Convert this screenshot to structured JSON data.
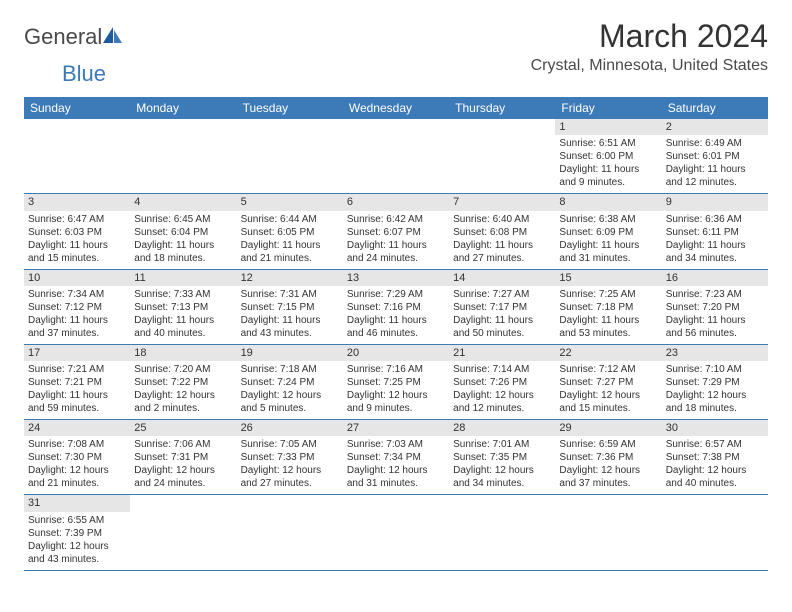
{
  "logo": {
    "text1": "General",
    "text2": "Blue"
  },
  "title": "March 2024",
  "location": "Crystal, Minnesota, United States",
  "colors": {
    "header_bg": "#3d7ab8",
    "daynum_bg": "#e6e6e6",
    "border": "#3d7ab8",
    "text": "#333333"
  },
  "day_names": [
    "Sunday",
    "Monday",
    "Tuesday",
    "Wednesday",
    "Thursday",
    "Friday",
    "Saturday"
  ],
  "weeks": [
    [
      null,
      null,
      null,
      null,
      null,
      {
        "n": "1",
        "sr": "Sunrise: 6:51 AM",
        "ss": "Sunset: 6:00 PM",
        "d1": "Daylight: 11 hours",
        "d2": "and 9 minutes."
      },
      {
        "n": "2",
        "sr": "Sunrise: 6:49 AM",
        "ss": "Sunset: 6:01 PM",
        "d1": "Daylight: 11 hours",
        "d2": "and 12 minutes."
      }
    ],
    [
      {
        "n": "3",
        "sr": "Sunrise: 6:47 AM",
        "ss": "Sunset: 6:03 PM",
        "d1": "Daylight: 11 hours",
        "d2": "and 15 minutes."
      },
      {
        "n": "4",
        "sr": "Sunrise: 6:45 AM",
        "ss": "Sunset: 6:04 PM",
        "d1": "Daylight: 11 hours",
        "d2": "and 18 minutes."
      },
      {
        "n": "5",
        "sr": "Sunrise: 6:44 AM",
        "ss": "Sunset: 6:05 PM",
        "d1": "Daylight: 11 hours",
        "d2": "and 21 minutes."
      },
      {
        "n": "6",
        "sr": "Sunrise: 6:42 AM",
        "ss": "Sunset: 6:07 PM",
        "d1": "Daylight: 11 hours",
        "d2": "and 24 minutes."
      },
      {
        "n": "7",
        "sr": "Sunrise: 6:40 AM",
        "ss": "Sunset: 6:08 PM",
        "d1": "Daylight: 11 hours",
        "d2": "and 27 minutes."
      },
      {
        "n": "8",
        "sr": "Sunrise: 6:38 AM",
        "ss": "Sunset: 6:09 PM",
        "d1": "Daylight: 11 hours",
        "d2": "and 31 minutes."
      },
      {
        "n": "9",
        "sr": "Sunrise: 6:36 AM",
        "ss": "Sunset: 6:11 PM",
        "d1": "Daylight: 11 hours",
        "d2": "and 34 minutes."
      }
    ],
    [
      {
        "n": "10",
        "sr": "Sunrise: 7:34 AM",
        "ss": "Sunset: 7:12 PM",
        "d1": "Daylight: 11 hours",
        "d2": "and 37 minutes."
      },
      {
        "n": "11",
        "sr": "Sunrise: 7:33 AM",
        "ss": "Sunset: 7:13 PM",
        "d1": "Daylight: 11 hours",
        "d2": "and 40 minutes."
      },
      {
        "n": "12",
        "sr": "Sunrise: 7:31 AM",
        "ss": "Sunset: 7:15 PM",
        "d1": "Daylight: 11 hours",
        "d2": "and 43 minutes."
      },
      {
        "n": "13",
        "sr": "Sunrise: 7:29 AM",
        "ss": "Sunset: 7:16 PM",
        "d1": "Daylight: 11 hours",
        "d2": "and 46 minutes."
      },
      {
        "n": "14",
        "sr": "Sunrise: 7:27 AM",
        "ss": "Sunset: 7:17 PM",
        "d1": "Daylight: 11 hours",
        "d2": "and 50 minutes."
      },
      {
        "n": "15",
        "sr": "Sunrise: 7:25 AM",
        "ss": "Sunset: 7:18 PM",
        "d1": "Daylight: 11 hours",
        "d2": "and 53 minutes."
      },
      {
        "n": "16",
        "sr": "Sunrise: 7:23 AM",
        "ss": "Sunset: 7:20 PM",
        "d1": "Daylight: 11 hours",
        "d2": "and 56 minutes."
      }
    ],
    [
      {
        "n": "17",
        "sr": "Sunrise: 7:21 AM",
        "ss": "Sunset: 7:21 PM",
        "d1": "Daylight: 11 hours",
        "d2": "and 59 minutes."
      },
      {
        "n": "18",
        "sr": "Sunrise: 7:20 AM",
        "ss": "Sunset: 7:22 PM",
        "d1": "Daylight: 12 hours",
        "d2": "and 2 minutes."
      },
      {
        "n": "19",
        "sr": "Sunrise: 7:18 AM",
        "ss": "Sunset: 7:24 PM",
        "d1": "Daylight: 12 hours",
        "d2": "and 5 minutes."
      },
      {
        "n": "20",
        "sr": "Sunrise: 7:16 AM",
        "ss": "Sunset: 7:25 PM",
        "d1": "Daylight: 12 hours",
        "d2": "and 9 minutes."
      },
      {
        "n": "21",
        "sr": "Sunrise: 7:14 AM",
        "ss": "Sunset: 7:26 PM",
        "d1": "Daylight: 12 hours",
        "d2": "and 12 minutes."
      },
      {
        "n": "22",
        "sr": "Sunrise: 7:12 AM",
        "ss": "Sunset: 7:27 PM",
        "d1": "Daylight: 12 hours",
        "d2": "and 15 minutes."
      },
      {
        "n": "23",
        "sr": "Sunrise: 7:10 AM",
        "ss": "Sunset: 7:29 PM",
        "d1": "Daylight: 12 hours",
        "d2": "and 18 minutes."
      }
    ],
    [
      {
        "n": "24",
        "sr": "Sunrise: 7:08 AM",
        "ss": "Sunset: 7:30 PM",
        "d1": "Daylight: 12 hours",
        "d2": "and 21 minutes."
      },
      {
        "n": "25",
        "sr": "Sunrise: 7:06 AM",
        "ss": "Sunset: 7:31 PM",
        "d1": "Daylight: 12 hours",
        "d2": "and 24 minutes."
      },
      {
        "n": "26",
        "sr": "Sunrise: 7:05 AM",
        "ss": "Sunset: 7:33 PM",
        "d1": "Daylight: 12 hours",
        "d2": "and 27 minutes."
      },
      {
        "n": "27",
        "sr": "Sunrise: 7:03 AM",
        "ss": "Sunset: 7:34 PM",
        "d1": "Daylight: 12 hours",
        "d2": "and 31 minutes."
      },
      {
        "n": "28",
        "sr": "Sunrise: 7:01 AM",
        "ss": "Sunset: 7:35 PM",
        "d1": "Daylight: 12 hours",
        "d2": "and 34 minutes."
      },
      {
        "n": "29",
        "sr": "Sunrise: 6:59 AM",
        "ss": "Sunset: 7:36 PM",
        "d1": "Daylight: 12 hours",
        "d2": "and 37 minutes."
      },
      {
        "n": "30",
        "sr": "Sunrise: 6:57 AM",
        "ss": "Sunset: 7:38 PM",
        "d1": "Daylight: 12 hours",
        "d2": "and 40 minutes."
      }
    ],
    [
      {
        "n": "31",
        "sr": "Sunrise: 6:55 AM",
        "ss": "Sunset: 7:39 PM",
        "d1": "Daylight: 12 hours",
        "d2": "and 43 minutes."
      },
      null,
      null,
      null,
      null,
      null,
      null
    ]
  ]
}
